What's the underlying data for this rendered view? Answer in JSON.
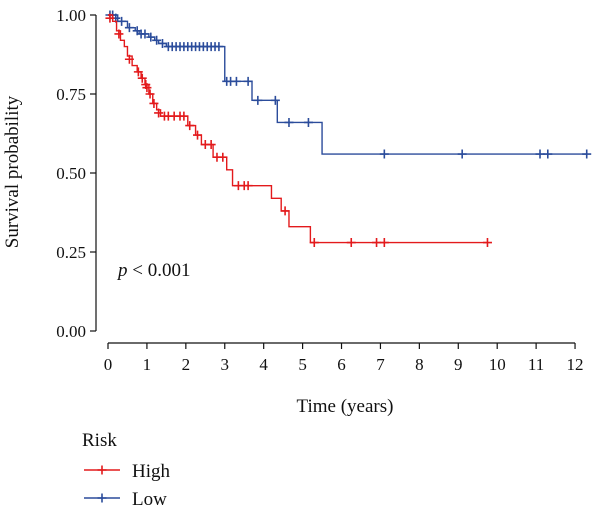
{
  "chart_data": {
    "type": "line",
    "subtype": "kaplan-meier",
    "xlabel": "Time (years)",
    "ylabel": "Survival probability",
    "xlim": [
      0,
      12.5
    ],
    "ylim": [
      0,
      1
    ],
    "xticks": [
      0,
      1,
      2,
      3,
      4,
      5,
      6,
      7,
      8,
      9,
      10,
      11,
      12
    ],
    "xtick_labels": [
      "0",
      "1",
      "2",
      "3",
      "4",
      "5",
      "6",
      "7",
      "8",
      "9",
      "10",
      "11",
      "12"
    ],
    "yticks": [
      0,
      0.25,
      0.5,
      0.75,
      1.0
    ],
    "ytick_labels": [
      "0.00",
      "0.25",
      "0.50",
      "0.75",
      "1.00"
    ],
    "grid": false,
    "annotation": {
      "prefix": "p",
      "text": " < 0.001"
    },
    "legend": {
      "title": "Risk",
      "position": "bottom-left"
    },
    "series": [
      {
        "name": "High",
        "color": "#e31a1c",
        "steps": [
          [
            0,
            1.0
          ],
          [
            0.12,
            0.98
          ],
          [
            0.22,
            0.95
          ],
          [
            0.32,
            0.92
          ],
          [
            0.42,
            0.9
          ],
          [
            0.5,
            0.87
          ],
          [
            0.62,
            0.84
          ],
          [
            0.75,
            0.82
          ],
          [
            0.85,
            0.8
          ],
          [
            0.95,
            0.78
          ],
          [
            1.05,
            0.75
          ],
          [
            1.15,
            0.72
          ],
          [
            1.25,
            0.7
          ],
          [
            1.35,
            0.68
          ],
          [
            2.05,
            0.65
          ],
          [
            2.25,
            0.62
          ],
          [
            2.4,
            0.59
          ],
          [
            2.7,
            0.55
          ],
          [
            3.05,
            0.51
          ],
          [
            3.2,
            0.46
          ],
          [
            4.2,
            0.42
          ],
          [
            4.45,
            0.38
          ],
          [
            4.65,
            0.33
          ],
          [
            5.2,
            0.28
          ],
          [
            9.75,
            0.28
          ]
        ],
        "censor_marks": [
          [
            0.05,
            0.99
          ],
          [
            0.28,
            0.94
          ],
          [
            0.55,
            0.86
          ],
          [
            0.78,
            0.82
          ],
          [
            0.88,
            0.8
          ],
          [
            0.97,
            0.78
          ],
          [
            1.0,
            0.77
          ],
          [
            1.08,
            0.75
          ],
          [
            1.18,
            0.72
          ],
          [
            1.3,
            0.69
          ],
          [
            1.45,
            0.68
          ],
          [
            1.55,
            0.68
          ],
          [
            1.7,
            0.68
          ],
          [
            1.85,
            0.68
          ],
          [
            1.95,
            0.68
          ],
          [
            2.1,
            0.65
          ],
          [
            2.3,
            0.62
          ],
          [
            2.5,
            0.59
          ],
          [
            2.65,
            0.59
          ],
          [
            2.8,
            0.55
          ],
          [
            2.95,
            0.55
          ],
          [
            3.35,
            0.46
          ],
          [
            3.5,
            0.46
          ],
          [
            3.6,
            0.46
          ],
          [
            4.55,
            0.38
          ],
          [
            5.3,
            0.28
          ],
          [
            6.25,
            0.28
          ],
          [
            6.9,
            0.28
          ],
          [
            7.1,
            0.28
          ],
          [
            9.75,
            0.28
          ]
        ]
      },
      {
        "name": "Low",
        "color": "#2b4c9b",
        "steps": [
          [
            0,
            1.0
          ],
          [
            0.25,
            0.98
          ],
          [
            0.5,
            0.96
          ],
          [
            0.7,
            0.95
          ],
          [
            0.8,
            0.94
          ],
          [
            1.05,
            0.93
          ],
          [
            1.2,
            0.92
          ],
          [
            1.3,
            0.91
          ],
          [
            1.5,
            0.9
          ],
          [
            3.0,
            0.79
          ],
          [
            3.7,
            0.73
          ],
          [
            4.35,
            0.66
          ],
          [
            5.5,
            0.56
          ],
          [
            12.3,
            0.56
          ]
        ],
        "censor_marks": [
          [
            0.05,
            1.0
          ],
          [
            0.12,
            1.0
          ],
          [
            0.2,
            0.99
          ],
          [
            0.35,
            0.98
          ],
          [
            0.55,
            0.96
          ],
          [
            0.75,
            0.95
          ],
          [
            0.85,
            0.94
          ],
          [
            0.95,
            0.94
          ],
          [
            1.1,
            0.93
          ],
          [
            1.25,
            0.92
          ],
          [
            1.4,
            0.91
          ],
          [
            1.55,
            0.9
          ],
          [
            1.65,
            0.9
          ],
          [
            1.75,
            0.9
          ],
          [
            1.85,
            0.9
          ],
          [
            1.95,
            0.9
          ],
          [
            2.05,
            0.9
          ],
          [
            2.15,
            0.9
          ],
          [
            2.25,
            0.9
          ],
          [
            2.35,
            0.9
          ],
          [
            2.45,
            0.9
          ],
          [
            2.55,
            0.9
          ],
          [
            2.65,
            0.9
          ],
          [
            2.75,
            0.9
          ],
          [
            2.85,
            0.9
          ],
          [
            3.05,
            0.79
          ],
          [
            3.15,
            0.79
          ],
          [
            3.3,
            0.79
          ],
          [
            3.6,
            0.79
          ],
          [
            3.85,
            0.73
          ],
          [
            4.3,
            0.73
          ],
          [
            4.65,
            0.66
          ],
          [
            5.15,
            0.66
          ],
          [
            7.1,
            0.56
          ],
          [
            9.1,
            0.56
          ],
          [
            11.1,
            0.56
          ],
          [
            11.3,
            0.56
          ],
          [
            12.3,
            0.56
          ]
        ]
      }
    ]
  }
}
